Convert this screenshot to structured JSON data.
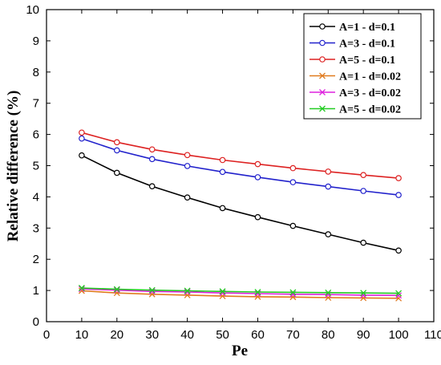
{
  "chart_data": {
    "type": "line",
    "title": "",
    "xlabel": "Pe",
    "ylabel": "Relative difference (%)",
    "xlim": [
      0,
      110
    ],
    "ylim": [
      0,
      10
    ],
    "xticks": [
      0,
      10,
      20,
      30,
      40,
      50,
      60,
      70,
      80,
      90,
      100,
      110
    ],
    "yticks": [
      0,
      1,
      2,
      3,
      4,
      5,
      6,
      7,
      8,
      9,
      10
    ],
    "grid": false,
    "legend_position": "top-right",
    "x": [
      10,
      20,
      30,
      40,
      50,
      60,
      70,
      80,
      90,
      100
    ],
    "series": [
      {
        "name": "A=1 - d=0.1",
        "color": "#000000",
        "marker": "circle",
        "values": [
          5.33,
          4.77,
          4.34,
          3.98,
          3.64,
          3.35,
          3.07,
          2.8,
          2.53,
          2.28
        ]
      },
      {
        "name": "A=3 - d=0.1",
        "color": "#2222cc",
        "marker": "circle",
        "values": [
          5.87,
          5.49,
          5.21,
          4.99,
          4.8,
          4.63,
          4.47,
          4.33,
          4.19,
          4.06
        ]
      },
      {
        "name": "A=5 - d=0.1",
        "color": "#dd2222",
        "marker": "circle",
        "values": [
          6.06,
          5.75,
          5.52,
          5.34,
          5.18,
          5.05,
          4.92,
          4.81,
          4.7,
          4.6
        ]
      },
      {
        "name": "A=1 - d=0.02",
        "color": "#e07b1f",
        "marker": "x",
        "values": [
          0.99,
          0.92,
          0.88,
          0.85,
          0.82,
          0.8,
          0.79,
          0.77,
          0.76,
          0.75
        ]
      },
      {
        "name": "A=3 - d=0.02",
        "color": "#dd22dd",
        "marker": "x",
        "values": [
          1.05,
          1.01,
          0.97,
          0.95,
          0.92,
          0.9,
          0.88,
          0.87,
          0.85,
          0.84
        ]
      },
      {
        "name": "A=5 - d=0.02",
        "color": "#22cc22",
        "marker": "x",
        "values": [
          1.08,
          1.04,
          1.01,
          0.99,
          0.97,
          0.95,
          0.94,
          0.93,
          0.92,
          0.91
        ]
      }
    ]
  }
}
